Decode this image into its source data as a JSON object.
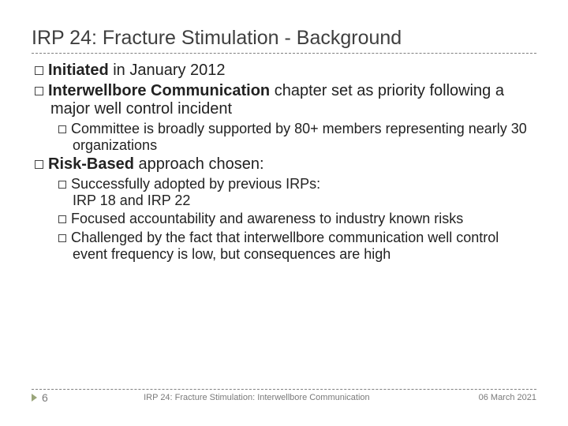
{
  "title": "IRP 24: Fracture Stimulation - Background",
  "bullets": {
    "b1_prefix": "Initiated",
    "b1_rest": " in January 2012",
    "b2_prefix": "Interwellbore Communication",
    "b2_rest": " chapter set as priority following a major well control incident",
    "b2_sub1": "Committee is broadly supported by 80+ members representing nearly 30 organizations",
    "b3_prefix": "Risk-Based",
    "b3_rest": " approach chosen:",
    "b3_sub1_line1": "Successfully adopted by previous IRPs:",
    "b3_sub1_line2": "IRP 18 and IRP 22",
    "b3_sub2": "Focused accountability and awareness to industry known risks",
    "b3_sub3": "Challenged by the fact that interwellbore communication well control event frequency is low, but consequences are high"
  },
  "footer": {
    "page": "6",
    "center": "IRP 24: Fracture Stimulation: Interwellbore Communication",
    "date": "06 March 2021"
  },
  "colors": {
    "text": "#222222",
    "muted": "#7a7a7a",
    "triangle": "#9aa57a",
    "dash": "#808080"
  }
}
